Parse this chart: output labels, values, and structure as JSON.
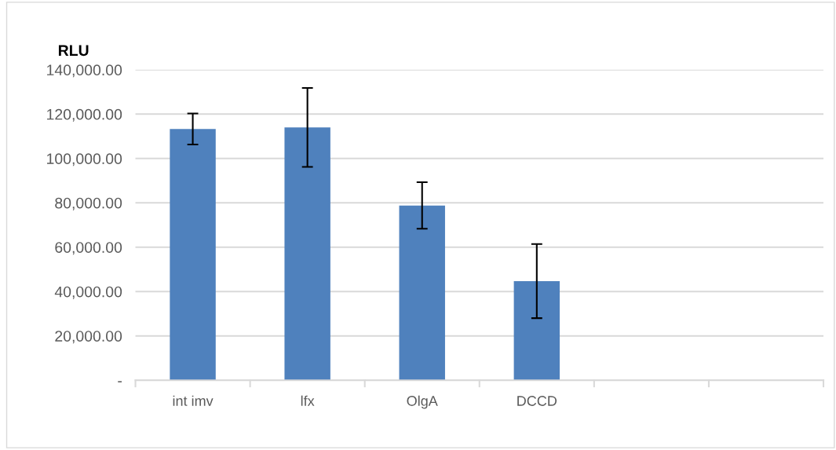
{
  "chart_data": {
    "type": "bar",
    "ylabel": "RLU",
    "categories": [
      "int imv",
      "lfx",
      "OlgA",
      "DCCD",
      null,
      null
    ],
    "values": [
      113300,
      114000,
      78800,
      44700,
      null,
      null
    ],
    "errors": [
      7000,
      17800,
      10500,
      16700,
      null,
      null
    ],
    "color": "#4f81bd",
    "ylim": [
      0,
      140000
    ],
    "yticks": [
      {
        "value": 0,
        "label": "-"
      },
      {
        "value": 20000,
        "label": "20,000.00"
      },
      {
        "value": 40000,
        "label": "40,000.00"
      },
      {
        "value": 60000,
        "label": "60,000.00"
      },
      {
        "value": 80000,
        "label": "80,000.00"
      },
      {
        "value": 100000,
        "label": "100,000.00"
      },
      {
        "value": 120000,
        "label": "120,000.00"
      },
      {
        "value": 140000,
        "label": "140,000.00"
      }
    ],
    "grid": "y"
  }
}
